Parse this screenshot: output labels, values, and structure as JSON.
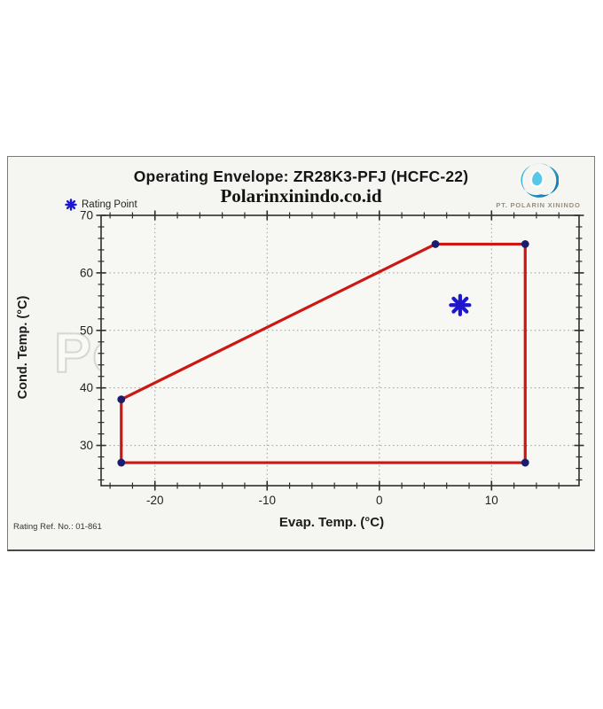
{
  "header": {
    "title": "Operating Envelope: ZR28K3-PFJ (HCFC-22)",
    "subtitle": "Polarinxinindo.co.id"
  },
  "logo": {
    "company": "PT. POLARIN XININDO"
  },
  "legend": {
    "label": "Rating Point"
  },
  "watermark": "Polarin Xinindo",
  "footer": {
    "rating_ref": "Rating Ref. No.: 01-861"
  },
  "colors": {
    "envelope_line": "#cc1712",
    "vertex_dot": "#1c1c6e",
    "rating_point": "#1f16d0",
    "axis": "#2e2e2e",
    "grid": "#9b9b9b",
    "plot_bg": "#f7f7f4",
    "logo_blue": "#1e8fc4"
  },
  "chart_data": {
    "type": "line",
    "title": "Operating Envelope: ZR28K3-PFJ (HCFC-22)",
    "xlabel": "Evap. Temp. (°C)",
    "ylabel": "Cond. Temp. (°C)",
    "xlim": [
      -24.8,
      17.8
    ],
    "ylim": [
      23,
      70
    ],
    "x_major_ticks": [
      -20,
      -10,
      0,
      10
    ],
    "y_major_ticks": [
      30,
      40,
      50,
      60,
      70
    ],
    "minor_tick_step": 2,
    "grid": "dotted lines at major ticks",
    "legend_position": "top-left",
    "series": [
      {
        "name": "Operating Envelope",
        "type": "polygon",
        "closed": true,
        "points": [
          [
            -23,
            38
          ],
          [
            5,
            65
          ],
          [
            13,
            65
          ],
          [
            13,
            27
          ],
          [
            -23,
            27
          ]
        ]
      },
      {
        "name": "Rating Point",
        "type": "point",
        "marker": "asterisk",
        "points": [
          [
            7.2,
            54.4
          ]
        ]
      }
    ]
  }
}
